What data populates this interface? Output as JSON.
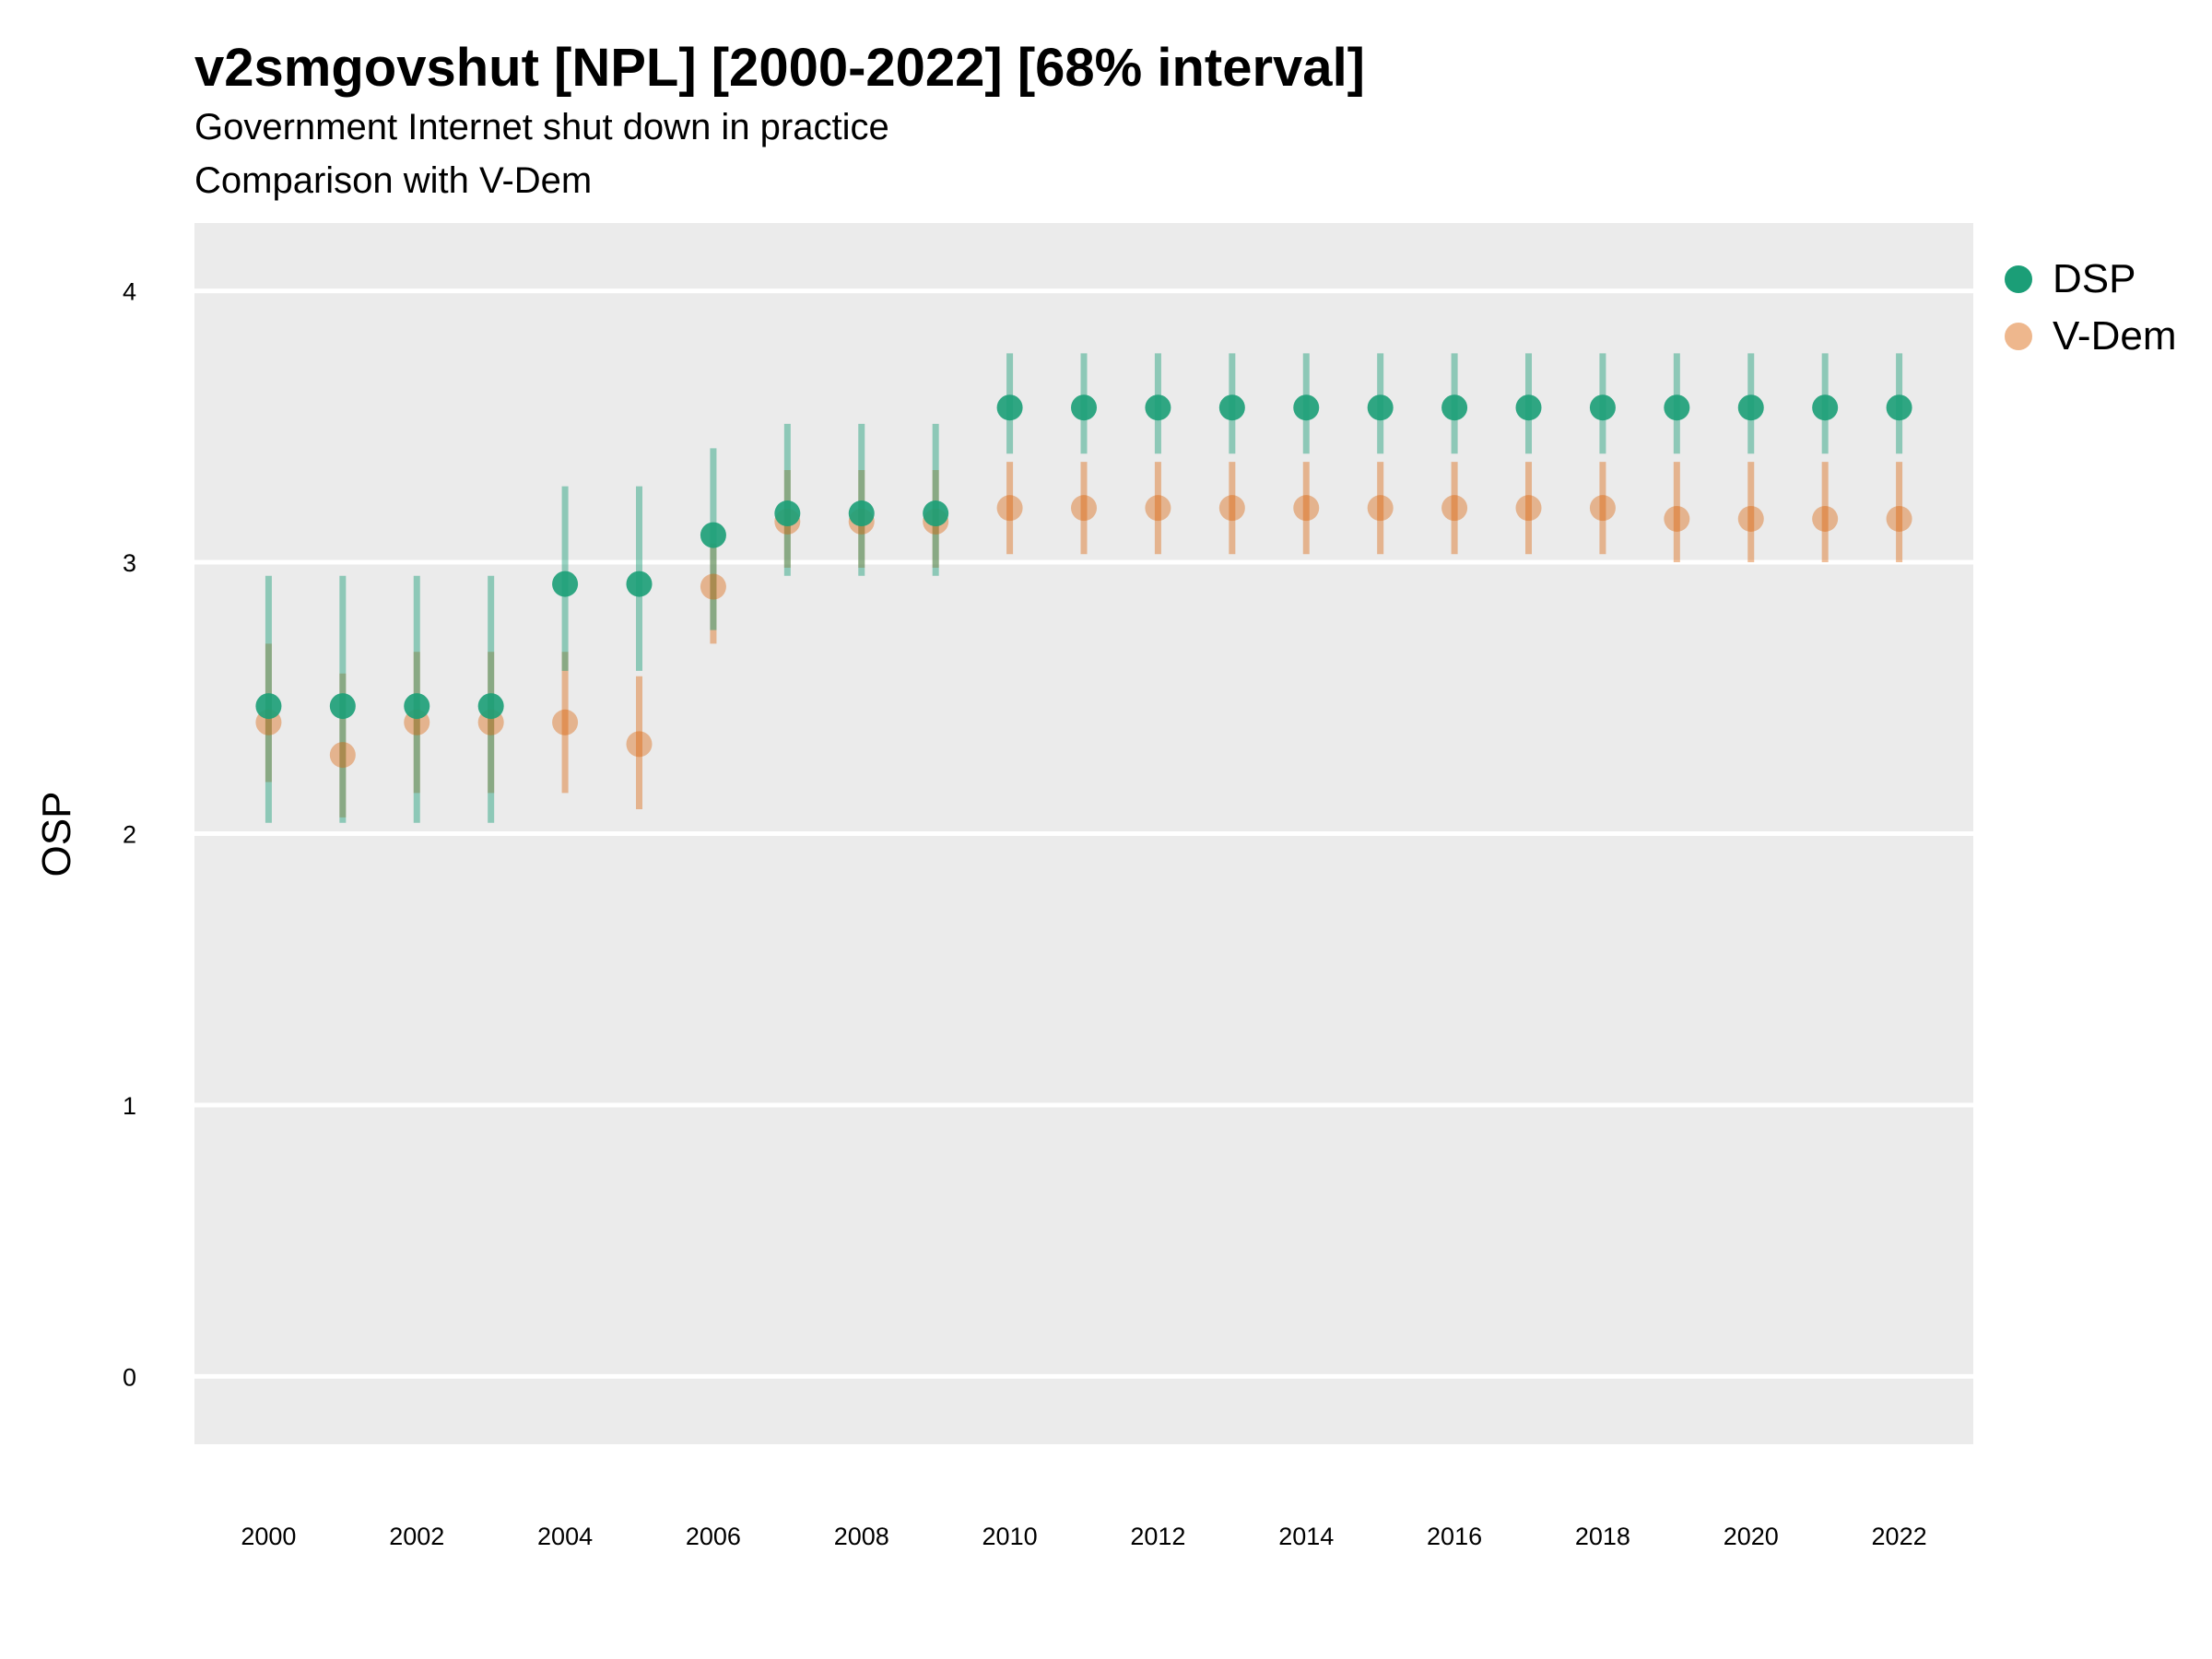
{
  "chart_data": {
    "type": "scatter",
    "title": "v2smgovshut [NPL] [2000-2022] [68% interval]",
    "subtitle": "Government Internet shut down in practice",
    "subtitle2": "Comparison with V-Dem",
    "xlabel": "",
    "ylabel": "OSP",
    "xlim": [
      1999,
      2023
    ],
    "ylim": [
      -0.25,
      4.25
    ],
    "x_ticks": [
      2000,
      2002,
      2004,
      2006,
      2008,
      2010,
      2012,
      2014,
      2016,
      2018,
      2020,
      2022
    ],
    "y_ticks": [
      0,
      1,
      2,
      3,
      4
    ],
    "grid": true,
    "legend_position": "right",
    "x": [
      2000,
      2001,
      2002,
      2003,
      2004,
      2005,
      2006,
      2007,
      2008,
      2009,
      2010,
      2011,
      2012,
      2013,
      2014,
      2015,
      2016,
      2017,
      2018,
      2019,
      2020,
      2021,
      2022
    ],
    "series": [
      {
        "name": "DSP",
        "color": "#1b9e77",
        "values": [
          2.47,
          2.47,
          2.47,
          2.47,
          2.92,
          2.92,
          3.1,
          3.18,
          3.18,
          3.18,
          3.57,
          3.57,
          3.57,
          3.57,
          3.57,
          3.57,
          3.57,
          3.57,
          3.57,
          3.57,
          3.57,
          3.57,
          3.57
        ],
        "lower": [
          2.04,
          2.04,
          2.04,
          2.04,
          2.6,
          2.6,
          2.75,
          2.95,
          2.95,
          2.95,
          3.4,
          3.4,
          3.4,
          3.4,
          3.4,
          3.4,
          3.4,
          3.4,
          3.4,
          3.4,
          3.4,
          3.4,
          3.4
        ],
        "upper": [
          2.95,
          2.95,
          2.95,
          2.95,
          3.28,
          3.28,
          3.42,
          3.51,
          3.51,
          3.51,
          3.77,
          3.77,
          3.77,
          3.77,
          3.77,
          3.77,
          3.77,
          3.77,
          3.77,
          3.77,
          3.77,
          3.77,
          3.77
        ]
      },
      {
        "name": "V-Dem",
        "color": "#d95f02",
        "values": [
          2.41,
          2.29,
          2.41,
          2.41,
          2.41,
          2.33,
          2.91,
          3.15,
          3.15,
          3.15,
          3.2,
          3.2,
          3.2,
          3.2,
          3.2,
          3.2,
          3.2,
          3.2,
          3.2,
          3.16,
          3.16,
          3.16,
          3.16
        ],
        "lower": [
          2.19,
          2.06,
          2.15,
          2.15,
          2.15,
          2.09,
          2.7,
          2.98,
          2.98,
          2.98,
          3.03,
          3.03,
          3.03,
          3.03,
          3.03,
          3.03,
          3.03,
          3.03,
          3.03,
          3.0,
          3.0,
          3.0,
          3.0
        ],
        "upper": [
          2.7,
          2.59,
          2.67,
          2.67,
          2.67,
          2.58,
          3.07,
          3.34,
          3.34,
          3.34,
          3.37,
          3.37,
          3.37,
          3.37,
          3.37,
          3.37,
          3.37,
          3.37,
          3.37,
          3.37,
          3.37,
          3.37,
          3.37
        ]
      }
    ]
  }
}
